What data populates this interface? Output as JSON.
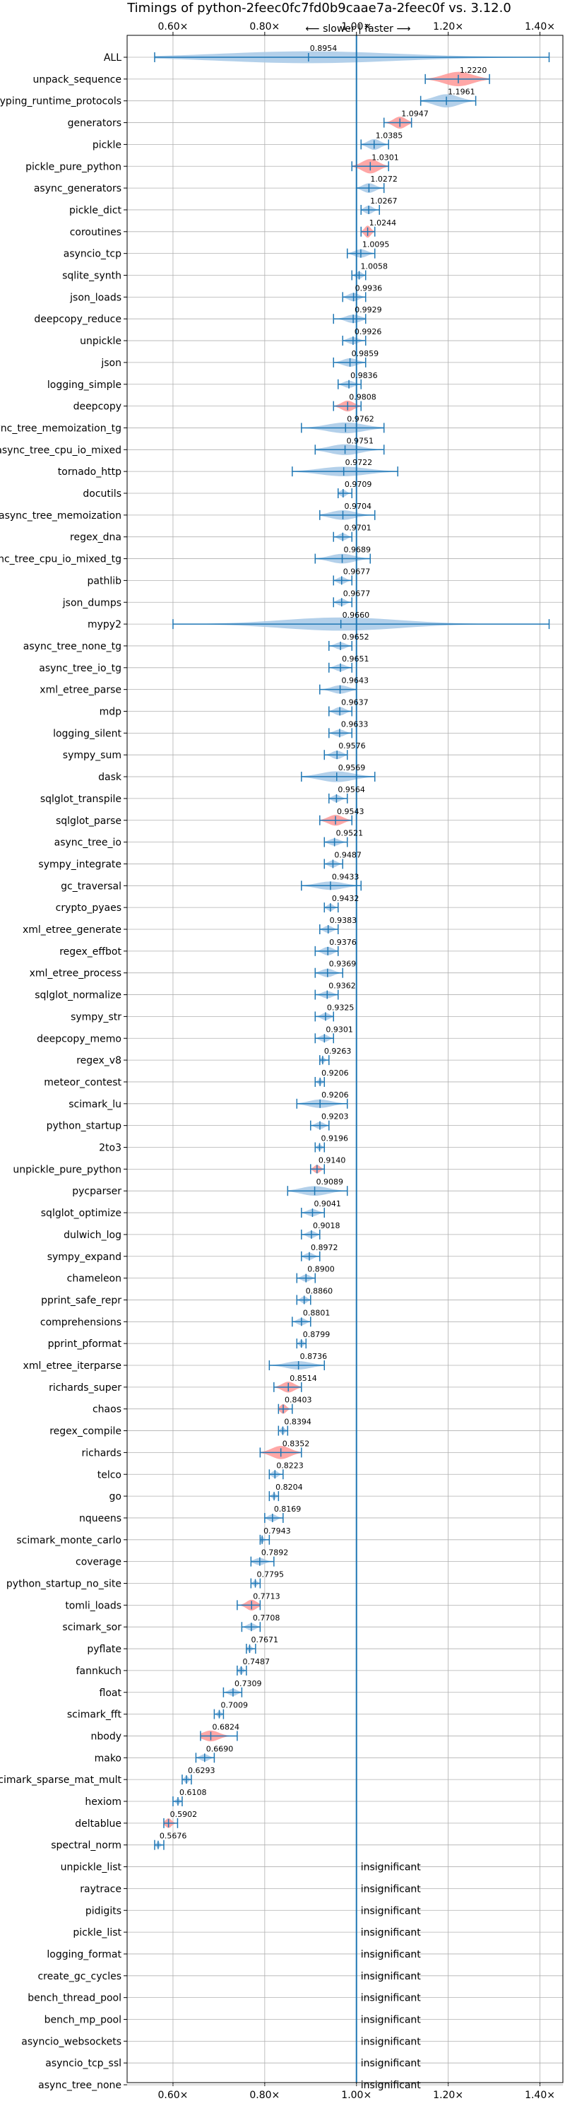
{
  "chart_data": {
    "type": "violin",
    "title": "Timings of python-2feec0fc7fd0b9caae7a-2feec0f vs. 3.12.0",
    "direction_label": "⟵ slower | faster ⟶",
    "xlim": [
      0.5,
      1.45
    ],
    "x_ticks": [
      0.6,
      0.8,
      1.0,
      1.2,
      1.4
    ],
    "x_tick_labels": [
      "0.60×",
      "0.80×",
      "1.00×",
      "1.20×",
      "1.40×"
    ],
    "reference_line": 1.0,
    "grid": true,
    "colors": {
      "normal": "#1f77b4",
      "highlight": "#ff9896",
      "violin": "#a6c8e6",
      "grid": "#b0b0b0"
    },
    "insignificant_text": "insignificant",
    "benchmarks": [
      {
        "name": "ALL",
        "value": 0.8954,
        "label": "0.8954",
        "min": 0.56,
        "max": 1.42,
        "width": 0.55,
        "hl": false,
        "shape": "all"
      },
      {
        "name": "unpack_sequence",
        "value": 1.222,
        "label": "1.2220",
        "min": 1.15,
        "max": 1.29,
        "width": 0.6,
        "hl": true
      },
      {
        "name": "typing_runtime_protocols",
        "value": 1.1961,
        "label": "1.1961",
        "min": 1.14,
        "max": 1.26,
        "width": 0.55,
        "hl": false
      },
      {
        "name": "generators",
        "value": 1.0947,
        "label": "1.0947",
        "min": 1.06,
        "max": 1.12,
        "width": 0.5,
        "hl": true
      },
      {
        "name": "pickle",
        "value": 1.0385,
        "label": "1.0385",
        "min": 1.01,
        "max": 1.07,
        "width": 0.45,
        "hl": false
      },
      {
        "name": "pickle_pure_python",
        "value": 1.0301,
        "label": "1.0301",
        "min": 0.99,
        "max": 1.07,
        "width": 0.6,
        "hl": true
      },
      {
        "name": "async_generators",
        "value": 1.0272,
        "label": "1.0272",
        "min": 1.0,
        "max": 1.06,
        "width": 0.4,
        "hl": false
      },
      {
        "name": "pickle_dict",
        "value": 1.0267,
        "label": "1.0267",
        "min": 1.01,
        "max": 1.05,
        "width": 0.35,
        "hl": false
      },
      {
        "name": "coroutines",
        "value": 1.0244,
        "label": "1.0244",
        "min": 1.01,
        "max": 1.04,
        "width": 0.5,
        "hl": true
      },
      {
        "name": "asyncio_tcp",
        "value": 1.0095,
        "label": "1.0095",
        "min": 0.98,
        "max": 1.04,
        "width": 0.35,
        "hl": false
      },
      {
        "name": "sqlite_synth",
        "value": 1.0058,
        "label": "1.0058",
        "min": 0.99,
        "max": 1.02,
        "width": 0.3,
        "hl": false
      },
      {
        "name": "json_loads",
        "value": 0.9936,
        "label": "0.9936",
        "min": 0.97,
        "max": 1.02,
        "width": 0.35,
        "hl": false
      },
      {
        "name": "deepcopy_reduce",
        "value": 0.9929,
        "label": "0.9929",
        "min": 0.95,
        "max": 1.02,
        "width": 0.35,
        "hl": false
      },
      {
        "name": "unpickle",
        "value": 0.9926,
        "label": "0.9926",
        "min": 0.97,
        "max": 1.02,
        "width": 0.3,
        "hl": false
      },
      {
        "name": "json",
        "value": 0.9859,
        "label": "0.9859",
        "min": 0.95,
        "max": 1.02,
        "width": 0.35,
        "hl": false
      },
      {
        "name": "logging_simple",
        "value": 0.9836,
        "label": "0.9836",
        "min": 0.96,
        "max": 1.01,
        "width": 0.3,
        "hl": false
      },
      {
        "name": "deepcopy",
        "value": 0.9808,
        "label": "0.9808",
        "min": 0.95,
        "max": 1.01,
        "width": 0.45,
        "hl": true
      },
      {
        "name": "async_tree_memoization_tg",
        "value": 0.9762,
        "label": "0.9762",
        "min": 0.88,
        "max": 1.06,
        "width": 0.45,
        "hl": false
      },
      {
        "name": "async_tree_cpu_io_mixed",
        "value": 0.9751,
        "label": "0.9751",
        "min": 0.91,
        "max": 1.06,
        "width": 0.45,
        "hl": false
      },
      {
        "name": "tornado_http",
        "value": 0.9722,
        "label": "0.9722",
        "min": 0.86,
        "max": 1.09,
        "width": 0.4,
        "hl": false
      },
      {
        "name": "docutils",
        "value": 0.9709,
        "label": "0.9709",
        "min": 0.96,
        "max": 0.99,
        "width": 0.3,
        "hl": false
      },
      {
        "name": "async_tree_memoization",
        "value": 0.9704,
        "label": "0.9704",
        "min": 0.92,
        "max": 1.04,
        "width": 0.4,
        "hl": false
      },
      {
        "name": "regex_dna",
        "value": 0.9701,
        "label": "0.9701",
        "min": 0.95,
        "max": 0.99,
        "width": 0.3,
        "hl": false
      },
      {
        "name": "async_tree_cpu_io_mixed_tg",
        "value": 0.9689,
        "label": "0.9689",
        "min": 0.91,
        "max": 1.03,
        "width": 0.4,
        "hl": false
      },
      {
        "name": "pathlib",
        "value": 0.9677,
        "label": "0.9677",
        "min": 0.95,
        "max": 0.99,
        "width": 0.3,
        "hl": false
      },
      {
        "name": "json_dumps",
        "value": 0.9677,
        "label": "0.9677",
        "min": 0.95,
        "max": 0.99,
        "width": 0.3,
        "hl": false
      },
      {
        "name": "mypy2",
        "value": 0.966,
        "label": "0.9660",
        "min": 0.6,
        "max": 1.42,
        "width": 0.55,
        "hl": false,
        "shape": "wide"
      },
      {
        "name": "async_tree_none_tg",
        "value": 0.9652,
        "label": "0.9652",
        "min": 0.94,
        "max": 0.99,
        "width": 0.3,
        "hl": false
      },
      {
        "name": "async_tree_io_tg",
        "value": 0.9651,
        "label": "0.9651",
        "min": 0.94,
        "max": 0.99,
        "width": 0.3,
        "hl": false
      },
      {
        "name": "xml_etree_parse",
        "value": 0.9643,
        "label": "0.9643",
        "min": 0.92,
        "max": 1.0,
        "width": 0.35,
        "hl": false
      },
      {
        "name": "mdp",
        "value": 0.9637,
        "label": "0.9637",
        "min": 0.94,
        "max": 0.99,
        "width": 0.35,
        "hl": false
      },
      {
        "name": "logging_silent",
        "value": 0.9633,
        "label": "0.9633",
        "min": 0.94,
        "max": 0.99,
        "width": 0.3,
        "hl": false
      },
      {
        "name": "sympy_sum",
        "value": 0.9576,
        "label": "0.9576",
        "min": 0.93,
        "max": 0.98,
        "width": 0.35,
        "hl": false
      },
      {
        "name": "dask",
        "value": 0.9569,
        "label": "0.9569",
        "min": 0.88,
        "max": 1.04,
        "width": 0.45,
        "hl": false
      },
      {
        "name": "sqlglot_transpile",
        "value": 0.9564,
        "label": "0.9564",
        "min": 0.94,
        "max": 0.98,
        "width": 0.3,
        "hl": false
      },
      {
        "name": "sqlglot_parse",
        "value": 0.9543,
        "label": "0.9543",
        "min": 0.92,
        "max": 0.99,
        "width": 0.45,
        "hl": true
      },
      {
        "name": "async_tree_io",
        "value": 0.9521,
        "label": "0.9521",
        "min": 0.93,
        "max": 0.98,
        "width": 0.3,
        "hl": false
      },
      {
        "name": "sympy_integrate",
        "value": 0.9487,
        "label": "0.9487",
        "min": 0.93,
        "max": 0.97,
        "width": 0.3,
        "hl": false
      },
      {
        "name": "gc_traversal",
        "value": 0.9433,
        "label": "0.9433",
        "min": 0.88,
        "max": 1.01,
        "width": 0.35,
        "hl": false
      },
      {
        "name": "crypto_pyaes",
        "value": 0.9432,
        "label": "0.9432",
        "min": 0.93,
        "max": 0.96,
        "width": 0.3,
        "hl": false
      },
      {
        "name": "xml_etree_generate",
        "value": 0.9383,
        "label": "0.9383",
        "min": 0.92,
        "max": 0.96,
        "width": 0.3,
        "hl": false
      },
      {
        "name": "regex_effbot",
        "value": 0.9376,
        "label": "0.9376",
        "min": 0.91,
        "max": 0.96,
        "width": 0.35,
        "hl": false
      },
      {
        "name": "xml_etree_process",
        "value": 0.9369,
        "label": "0.9369",
        "min": 0.91,
        "max": 0.97,
        "width": 0.35,
        "hl": false
      },
      {
        "name": "sqlglot_normalize",
        "value": 0.9362,
        "label": "0.9362",
        "min": 0.91,
        "max": 0.96,
        "width": 0.3,
        "hl": false
      },
      {
        "name": "sympy_str",
        "value": 0.9325,
        "label": "0.9325",
        "min": 0.91,
        "max": 0.95,
        "width": 0.3,
        "hl": false
      },
      {
        "name": "deepcopy_memo",
        "value": 0.9301,
        "label": "0.9301",
        "min": 0.91,
        "max": 0.95,
        "width": 0.3,
        "hl": false
      },
      {
        "name": "regex_v8",
        "value": 0.9263,
        "label": "0.9263",
        "min": 0.92,
        "max": 0.94,
        "width": 0.25,
        "hl": false
      },
      {
        "name": "meteor_contest",
        "value": 0.9206,
        "label": "0.9206",
        "min": 0.91,
        "max": 0.93,
        "width": 0.25,
        "hl": false
      },
      {
        "name": "scimark_lu",
        "value": 0.9206,
        "label": "0.9206",
        "min": 0.87,
        "max": 0.98,
        "width": 0.35,
        "hl": false
      },
      {
        "name": "python_startup",
        "value": 0.9203,
        "label": "0.9203",
        "min": 0.9,
        "max": 0.94,
        "width": 0.3,
        "hl": false
      },
      {
        "name": "2to3",
        "value": 0.9196,
        "label": "0.9196",
        "min": 0.91,
        "max": 0.93,
        "width": 0.25,
        "hl": false
      },
      {
        "name": "unpickle_pure_python",
        "value": 0.914,
        "label": "0.9140",
        "min": 0.9,
        "max": 0.93,
        "width": 0.35,
        "hl": true
      },
      {
        "name": "pycparser",
        "value": 0.9089,
        "label": "0.9089",
        "min": 0.85,
        "max": 0.98,
        "width": 0.4,
        "hl": false
      },
      {
        "name": "sqlglot_optimize",
        "value": 0.9041,
        "label": "0.9041",
        "min": 0.88,
        "max": 0.93,
        "width": 0.3,
        "hl": false
      },
      {
        "name": "dulwich_log",
        "value": 0.9018,
        "label": "0.9018",
        "min": 0.88,
        "max": 0.92,
        "width": 0.3,
        "hl": false
      },
      {
        "name": "sympy_expand",
        "value": 0.8972,
        "label": "0.8972",
        "min": 0.88,
        "max": 0.92,
        "width": 0.3,
        "hl": false
      },
      {
        "name": "chameleon",
        "value": 0.89,
        "label": "0.8900",
        "min": 0.87,
        "max": 0.91,
        "width": 0.3,
        "hl": false
      },
      {
        "name": "pprint_safe_repr",
        "value": 0.886,
        "label": "0.8860",
        "min": 0.87,
        "max": 0.9,
        "width": 0.3,
        "hl": false
      },
      {
        "name": "comprehensions",
        "value": 0.8801,
        "label": "0.8801",
        "min": 0.86,
        "max": 0.9,
        "width": 0.3,
        "hl": false
      },
      {
        "name": "pprint_pformat",
        "value": 0.8799,
        "label": "0.8799",
        "min": 0.87,
        "max": 0.89,
        "width": 0.3,
        "hl": false
      },
      {
        "name": "xml_etree_iterparse",
        "value": 0.8736,
        "label": "0.8736",
        "min": 0.81,
        "max": 0.93,
        "width": 0.35,
        "hl": false
      },
      {
        "name": "richards_super",
        "value": 0.8514,
        "label": "0.8514",
        "min": 0.82,
        "max": 0.88,
        "width": 0.45,
        "hl": true
      },
      {
        "name": "chaos",
        "value": 0.8403,
        "label": "0.8403",
        "min": 0.83,
        "max": 0.86,
        "width": 0.4,
        "hl": true
      },
      {
        "name": "regex_compile",
        "value": 0.8394,
        "label": "0.8394",
        "min": 0.83,
        "max": 0.85,
        "width": 0.3,
        "hl": false
      },
      {
        "name": "richards",
        "value": 0.8352,
        "label": "0.8352",
        "min": 0.79,
        "max": 0.88,
        "width": 0.55,
        "hl": true
      },
      {
        "name": "telco",
        "value": 0.8223,
        "label": "0.8223",
        "min": 0.81,
        "max": 0.84,
        "width": 0.3,
        "hl": false
      },
      {
        "name": "go",
        "value": 0.8204,
        "label": "0.8204",
        "min": 0.81,
        "max": 0.83,
        "width": 0.25,
        "hl": false
      },
      {
        "name": "nqueens",
        "value": 0.8169,
        "label": "0.8169",
        "min": 0.8,
        "max": 0.84,
        "width": 0.3,
        "hl": false
      },
      {
        "name": "scimark_monte_carlo",
        "value": 0.7943,
        "label": "0.7943",
        "min": 0.79,
        "max": 0.81,
        "width": 0.25,
        "hl": false
      },
      {
        "name": "coverage",
        "value": 0.7892,
        "label": "0.7892",
        "min": 0.77,
        "max": 0.82,
        "width": 0.3,
        "hl": false
      },
      {
        "name": "python_startup_no_site",
        "value": 0.7795,
        "label": "0.7795",
        "min": 0.77,
        "max": 0.79,
        "width": 0.25,
        "hl": false
      },
      {
        "name": "tomli_loads",
        "value": 0.7713,
        "label": "0.7713",
        "min": 0.74,
        "max": 0.79,
        "width": 0.45,
        "hl": true
      },
      {
        "name": "scimark_sor",
        "value": 0.7708,
        "label": "0.7708",
        "min": 0.75,
        "max": 0.79,
        "width": 0.3,
        "hl": false
      },
      {
        "name": "pyflate",
        "value": 0.7671,
        "label": "0.7671",
        "min": 0.76,
        "max": 0.78,
        "width": 0.25,
        "hl": false
      },
      {
        "name": "fannkuch",
        "value": 0.7487,
        "label": "0.7487",
        "min": 0.74,
        "max": 0.76,
        "width": 0.3,
        "hl": false
      },
      {
        "name": "float",
        "value": 0.7309,
        "label": "0.7309",
        "min": 0.71,
        "max": 0.75,
        "width": 0.3,
        "hl": false
      },
      {
        "name": "scimark_fft",
        "value": 0.7009,
        "label": "0.7009",
        "min": 0.69,
        "max": 0.71,
        "width": 0.25,
        "hl": false
      },
      {
        "name": "nbody",
        "value": 0.6824,
        "label": "0.6824",
        "min": 0.66,
        "max": 0.74,
        "width": 0.45,
        "hl": true
      },
      {
        "name": "mako",
        "value": 0.669,
        "label": "0.6690",
        "min": 0.65,
        "max": 0.69,
        "width": 0.3,
        "hl": false
      },
      {
        "name": "scimark_sparse_mat_mult",
        "value": 0.6293,
        "label": "0.6293",
        "min": 0.62,
        "max": 0.64,
        "width": 0.3,
        "hl": false
      },
      {
        "name": "hexiom",
        "value": 0.6108,
        "label": "0.6108",
        "min": 0.6,
        "max": 0.62,
        "width": 0.25,
        "hl": false
      },
      {
        "name": "deltablue",
        "value": 0.5902,
        "label": "0.5902",
        "min": 0.58,
        "max": 0.61,
        "width": 0.4,
        "hl": true
      },
      {
        "name": "spectral_norm",
        "value": 0.5676,
        "label": "0.5676",
        "min": 0.56,
        "max": 0.58,
        "width": 0.25,
        "hl": false
      },
      {
        "name": "unpickle_list",
        "insignificant": true
      },
      {
        "name": "raytrace",
        "insignificant": true
      },
      {
        "name": "pidigits",
        "insignificant": true
      },
      {
        "name": "pickle_list",
        "insignificant": true
      },
      {
        "name": "logging_format",
        "insignificant": true
      },
      {
        "name": "create_gc_cycles",
        "insignificant": true
      },
      {
        "name": "bench_thread_pool",
        "insignificant": true
      },
      {
        "name": "bench_mp_pool",
        "insignificant": true
      },
      {
        "name": "asyncio_websockets",
        "insignificant": true
      },
      {
        "name": "asyncio_tcp_ssl",
        "insignificant": true
      },
      {
        "name": "async_tree_none",
        "insignificant": true
      }
    ]
  }
}
